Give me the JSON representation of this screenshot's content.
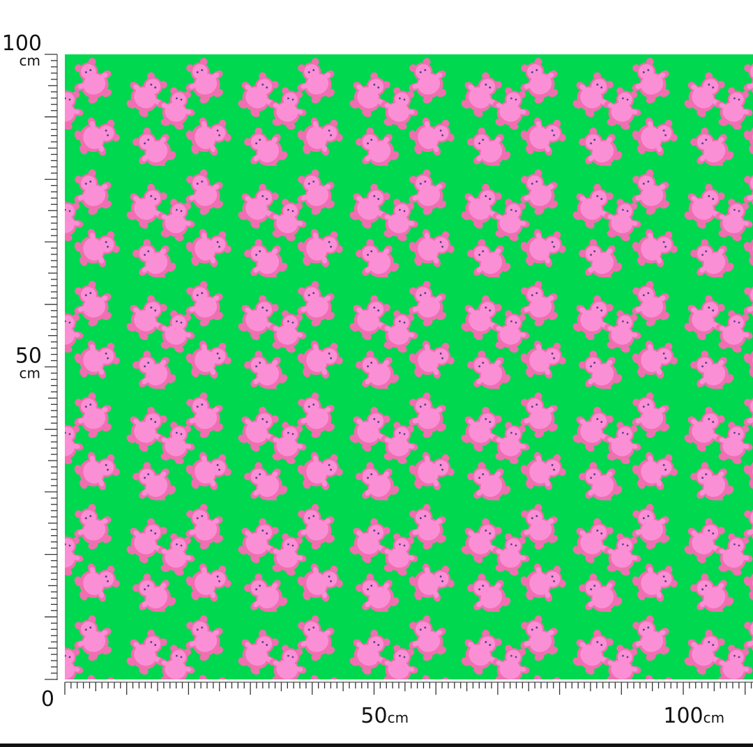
{
  "ruler_left": {
    "labels": [
      {
        "value": 100,
        "unit": "cm"
      },
      {
        "value": 50,
        "unit": "cm"
      },
      {
        "value": 0
      }
    ]
  },
  "ruler_bottom": {
    "labels": [
      {
        "value": 50,
        "unit": "cm"
      },
      {
        "value": 100,
        "unit": "cm"
      }
    ]
  }
}
